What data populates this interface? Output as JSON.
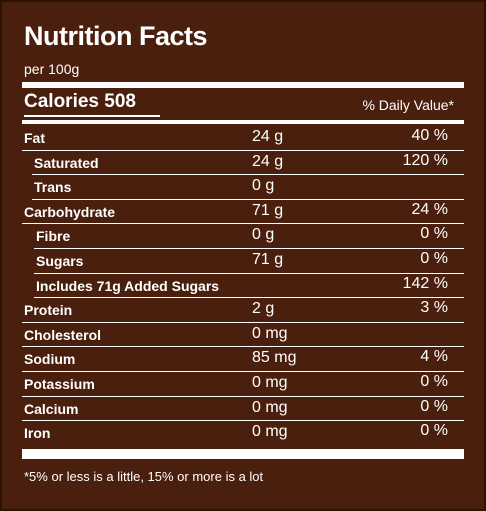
{
  "label": {
    "title": "Nutrition Facts",
    "serving": "per 100g",
    "calories": "Calories 508",
    "dv_header": "% Daily Value*",
    "footnote": "*5% or less is a little, 15% or more is a lot"
  },
  "colors": {
    "background": "#4b1f0e",
    "text": "#ffffff"
  },
  "nutrients": [
    {
      "name": "Fat",
      "amount": "24 g",
      "dv": "40 %"
    },
    {
      "name": "Saturated",
      "amount": "24 g",
      "dv": "120 %"
    },
    {
      "name": "Trans",
      "amount": "0 g",
      "dv": ""
    },
    {
      "name": "Carbohydrate",
      "amount": "71 g",
      "dv": "24 %"
    },
    {
      "name": "Fibre",
      "amount": "0 g",
      "dv": "0 %"
    },
    {
      "name": "Sugars",
      "amount": "71 g",
      "dv": "0 %"
    },
    {
      "name": "Includes 71g Added Sugars",
      "amount": "",
      "dv": "142 %"
    },
    {
      "name": "Protein",
      "amount": "2 g",
      "dv": "3 %"
    },
    {
      "name": "Cholesterol",
      "amount": "0 mg",
      "dv": ""
    },
    {
      "name": "Sodium",
      "amount": "85 mg",
      "dv": "4 %"
    },
    {
      "name": "Potassium",
      "amount": "0 mg",
      "dv": "0 %"
    },
    {
      "name": "Calcium",
      "amount": "0 mg",
      "dv": "0 %"
    },
    {
      "name": "Iron",
      "amount": "0 mg",
      "dv": "0 %"
    }
  ]
}
